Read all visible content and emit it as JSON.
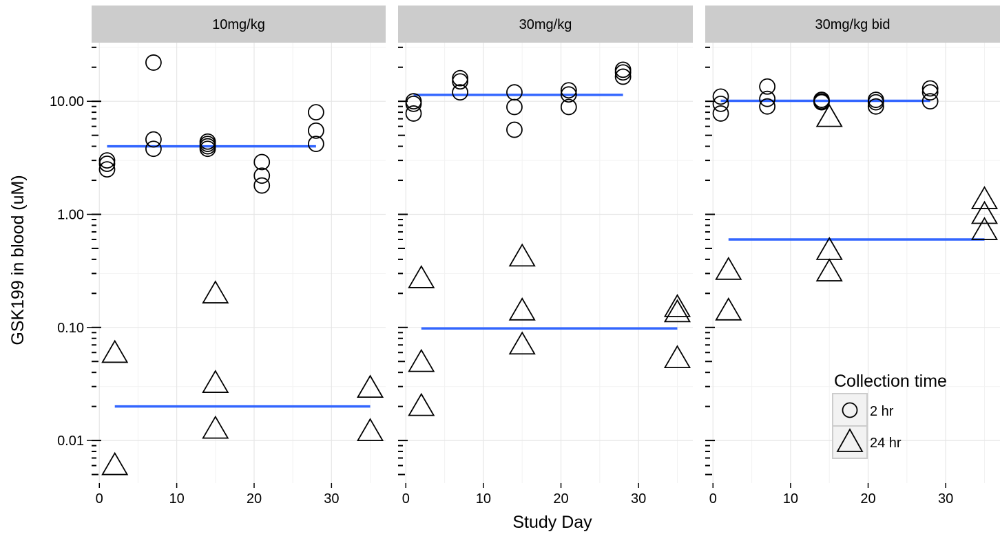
{
  "chart_data": {
    "type": "scatter",
    "x_scale": "linear",
    "y_scale": "log10",
    "xlabel": "Study Day",
    "ylabel": "GSK199 in blood (uM)",
    "xlim": [
      -1,
      37
    ],
    "ylim": [
      0.0042,
      33
    ],
    "x_ticks": [
      0,
      10,
      20,
      30
    ],
    "x_tick_labels": [
      "0",
      "10",
      "20",
      "30"
    ],
    "y_ticks": [
      0.01,
      0.1,
      1,
      10
    ],
    "y_tick_labels": [
      "0.01",
      "0.10",
      "1.00",
      "10.00"
    ],
    "grid": true,
    "legend": {
      "title": "Collection time",
      "position": "bottom-right",
      "entries": [
        {
          "label": "2 hr",
          "shape": "circle"
        },
        {
          "label": "24 hr",
          "shape": "triangle"
        }
      ]
    },
    "fit_line_color": "#3366FF",
    "panels": [
      {
        "strip_label": "10mg/kg",
        "points_2hr": {
          "x": [
            1,
            1,
            1,
            7,
            7,
            7,
            14,
            14,
            14,
            14,
            21,
            21,
            21,
            28,
            28,
            28
          ],
          "y": [
            2.5,
            2.8,
            3.0,
            22,
            4.6,
            3.8,
            3.8,
            4.0,
            4.2,
            4.4,
            1.8,
            2.2,
            2.9,
            8.0,
            5.5,
            4.2
          ]
        },
        "points_24hr": {
          "x": [
            2,
            2,
            15,
            15,
            15,
            35,
            35
          ],
          "y": [
            0.059,
            0.006,
            0.198,
            0.032,
            0.0126,
            0.029,
            0.012
          ]
        },
        "fit_2hr": {
          "x": [
            1,
            28
          ],
          "y": [
            4.0,
            4.0
          ]
        },
        "fit_24hr": {
          "x": [
            2,
            35
          ],
          "y": [
            0.02,
            0.02
          ]
        }
      },
      {
        "strip_label": "30mg/kg",
        "points_2hr": {
          "x": [
            1,
            1,
            1,
            7,
            7,
            7,
            14,
            14,
            14,
            21,
            21,
            21,
            28,
            28,
            28
          ],
          "y": [
            7.8,
            9.5,
            10.0,
            12.0,
            15.0,
            16.0,
            5.6,
            8.9,
            12.0,
            8.9,
            11.5,
            12.5,
            16.5,
            18.0,
            19.0
          ]
        },
        "points_24hr": {
          "x": [
            2,
            2,
            2,
            15,
            15,
            15,
            35,
            35,
            35
          ],
          "y": [
            0.27,
            0.049,
            0.02,
            0.42,
            0.14,
            0.07,
            0.15,
            0.135,
            0.053
          ]
        },
        "fit_2hr": {
          "x": [
            1,
            28
          ],
          "y": [
            11.4,
            11.4
          ]
        },
        "fit_24hr": {
          "x": [
            2,
            35
          ],
          "y": [
            0.098,
            0.098
          ]
        }
      },
      {
        "strip_label": "30mg/kg bid",
        "points_2hr": {
          "x": [
            1,
            1,
            1,
            7,
            7,
            7,
            14,
            14,
            14,
            21,
            21,
            21,
            28,
            28,
            28
          ],
          "y": [
            7.8,
            9.5,
            11.0,
            9.0,
            10.5,
            13.5,
            9.8,
            10.0,
            10.3,
            9.0,
            9.8,
            10.3,
            10.0,
            12.0,
            13.0
          ],
          "note": ""
        },
        "points_24hr": {
          "x": [
            2,
            2,
            15,
            15,
            15,
            35,
            35,
            35
          ],
          "y": [
            0.32,
            0.14,
            7.2,
            0.48,
            0.31,
            1.35,
            1.0,
            0.72
          ]
        },
        "fit_2hr": {
          "x": [
            1,
            28
          ],
          "y": [
            10.1,
            10.1
          ]
        },
        "fit_24hr": {
          "x": [
            2,
            35
          ],
          "y": [
            0.6,
            0.6
          ]
        }
      }
    ]
  }
}
